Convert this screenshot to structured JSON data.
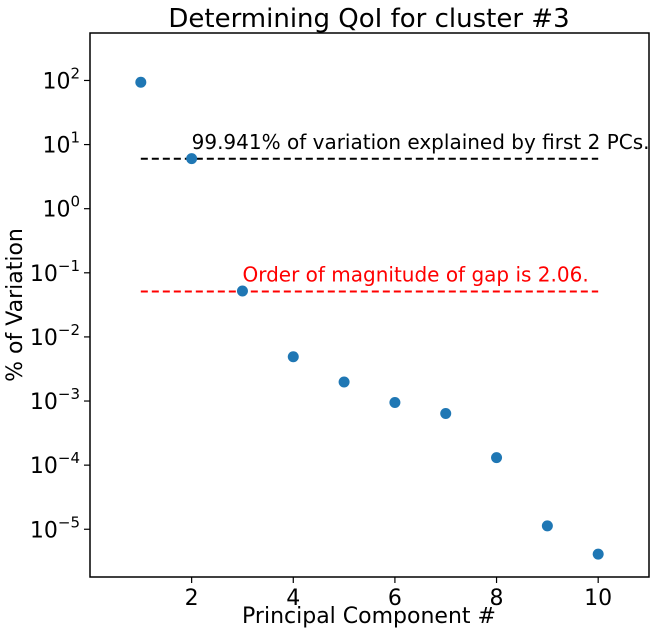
{
  "chart_data": {
    "type": "scatter",
    "title": "Determining QoI for cluster #3",
    "xlabel": "Principal Component #",
    "ylabel": "% of Variation",
    "xlim": [
      0.0,
      11.0
    ],
    "ylim": [
      1.8e-06,
      550
    ],
    "yscale": "log",
    "grid": false,
    "x_ticks": [
      2,
      4,
      6,
      8,
      10
    ],
    "y_ticks": [
      {
        "value": 1e-05,
        "base": "10",
        "exp": "−5"
      },
      {
        "value": 0.0001,
        "base": "10",
        "exp": "−4"
      },
      {
        "value": 0.001,
        "base": "10",
        "exp": "−3"
      },
      {
        "value": 0.01,
        "base": "10",
        "exp": "−2"
      },
      {
        "value": 0.1,
        "base": "10",
        "exp": "−1"
      },
      {
        "value": 1,
        "base": "10",
        "exp": "0"
      },
      {
        "value": 10,
        "base": "10",
        "exp": "1"
      },
      {
        "value": 100,
        "base": "10",
        "exp": "2"
      }
    ],
    "series": [
      {
        "color": "#1f77b4",
        "x": [
          1,
          2,
          3,
          4,
          5,
          6,
          7,
          8,
          9,
          10
        ],
        "y": [
          93.9,
          6.04,
          0.052,
          0.0049,
          0.00198,
          0.00095,
          0.00064,
          0.000131,
          1.13e-05,
          4.1e-06
        ]
      }
    ],
    "hlines": [
      {
        "y": 6.0,
        "x_range": [
          1,
          10
        ],
        "color": "#000000",
        "style": "dashed"
      },
      {
        "y": 0.051,
        "x_range": [
          1,
          10
        ],
        "color": "#ff0000",
        "style": "dashed"
      }
    ],
    "annotations": [
      {
        "text": "99.941% of variation explained by first 2 PCs.",
        "x": 2,
        "y": 6.0,
        "color": "#000000"
      },
      {
        "text": "Order of magnitude of gap is 2.06.",
        "x": 3,
        "y": 0.051,
        "color": "#ff0000"
      }
    ]
  }
}
